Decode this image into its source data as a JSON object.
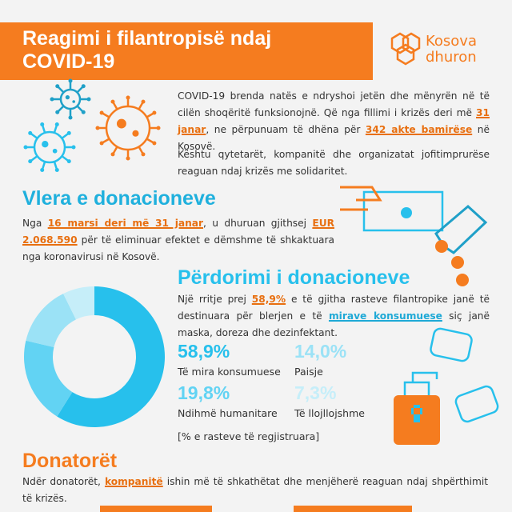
{
  "header": {
    "title_line1": "Reagimi i filantropisë ndaj",
    "title_line2": "COVID-19",
    "logo_line1": "Kosova",
    "logo_line2": "dhuron"
  },
  "intro": {
    "paragraph1": [
      "COVID-19 brenda natës e ndryshoi jetën dhe mënyrën në të cilën shoqëritë funksionojnë. Që nga fillimi i krizës deri më ",
      "31 janar",
      ", ne përpunuam të dhëna për ",
      "342 akte bamirëse",
      " në Kosovë."
    ],
    "paragraph2": "Kështu qytetarët, kompanitë dhe organizatat jofitimprurëse reaguan ndaj krizës me solidaritet."
  },
  "value_section": {
    "heading": "Vlera e donacioneve",
    "paragraph": [
      "Nga ",
      "16 marsi deri më 31 janar",
      ", u dhuruan gjithsej ",
      "EUR 2.068.590",
      " për të eliminuar efektet e dëmshme të shkaktuara nga koronavirusi në Kosovë."
    ]
  },
  "usage_section": {
    "heading": "Përdorimi i donacioneve",
    "paragraph": [
      "Një rritje prej ",
      "58,9%",
      " e të gjitha rasteve filantropike janë të destinuara për blerjen e të ",
      "mirave konsumuese",
      " siç janë maska, doreza dhe dezinfektant."
    ],
    "footnote": "[% e rasteve të regjistruara]"
  },
  "chart_data": {
    "type": "pie",
    "donut": true,
    "categories": [
      "Të mira konsumuese",
      "Ndihmë humanitare",
      "Paisje",
      "Të llojllojshme"
    ],
    "values": [
      58.9,
      19.8,
      14.0,
      7.3
    ],
    "value_labels": [
      "58,9%",
      "19,8%",
      "14,0%",
      "7,3%"
    ],
    "colors": [
      "#27c0ec",
      "#62d3f3",
      "#9be2f6",
      "#c6eef9"
    ]
  },
  "donors": {
    "heading": "Donatorët",
    "paragraph": [
      "Ndër donatorët, ",
      "kompanitë",
      " ishin më të shkathëtat dhe menjëherë reaguan ndaj shpërthimit të krizës."
    ]
  }
}
